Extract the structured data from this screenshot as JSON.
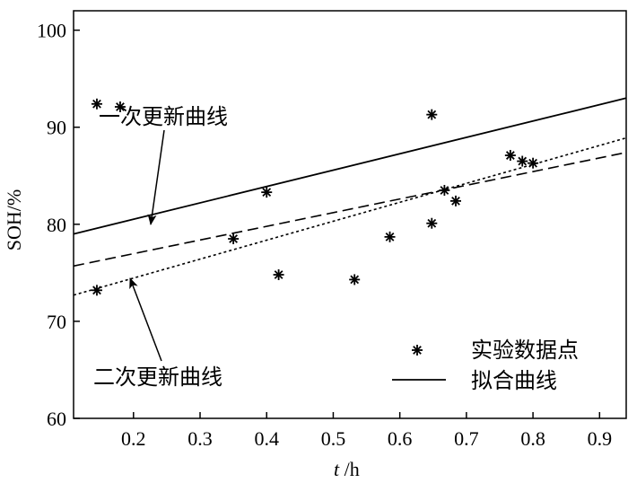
{
  "chart_data": {
    "type": "scatter",
    "xlabel_var": "t",
    "xlabel_unit": " /h",
    "ylabel": "SOH/%",
    "xlim": [
      0.11,
      0.94
    ],
    "ylim": [
      60,
      102
    ],
    "xticks": [
      0.2,
      0.3,
      0.4,
      0.5,
      0.6,
      0.7,
      0.8,
      0.9
    ],
    "xtick_labels": [
      "0.2",
      "0.3",
      "0.4",
      "0.5",
      "0.6",
      "0.7",
      "0.8",
      "0.9"
    ],
    "yticks": [
      60,
      70,
      80,
      90,
      100
    ],
    "ytick_labels": [
      "60",
      "70",
      "80",
      "90",
      "100"
    ],
    "grid": false,
    "legend_position": "bottom-right",
    "series": [
      {
        "name": "实验数据点",
        "kind": "scatter",
        "marker": "asterisk",
        "x": [
          0.145,
          0.18,
          0.145,
          0.35,
          0.4,
          0.418,
          0.532,
          0.585,
          0.648,
          0.648,
          0.667,
          0.684,
          0.766,
          0.784,
          0.8
        ],
        "y": [
          92.4,
          92.1,
          73.2,
          78.5,
          83.3,
          74.8,
          74.3,
          78.7,
          91.3,
          80.1,
          83.5,
          82.4,
          87.1,
          86.5,
          86.3
        ]
      },
      {
        "name": "拟合曲线",
        "kind": "line",
        "style": "solid",
        "x": [
          0.11,
          0.94
        ],
        "y": [
          79.0,
          93.0
        ]
      },
      {
        "kind": "line",
        "style": "dashed",
        "x": [
          0.11,
          0.94
        ],
        "y": [
          75.7,
          87.4
        ]
      },
      {
        "kind": "line",
        "style": "dotted",
        "x": [
          0.11,
          0.94
        ],
        "y": [
          72.7,
          88.9
        ]
      }
    ],
    "annotations": [
      {
        "text": "一次更新曲线",
        "points_to": "dashed"
      },
      {
        "text": "二次更新曲线",
        "points_to": "dotted"
      }
    ]
  }
}
